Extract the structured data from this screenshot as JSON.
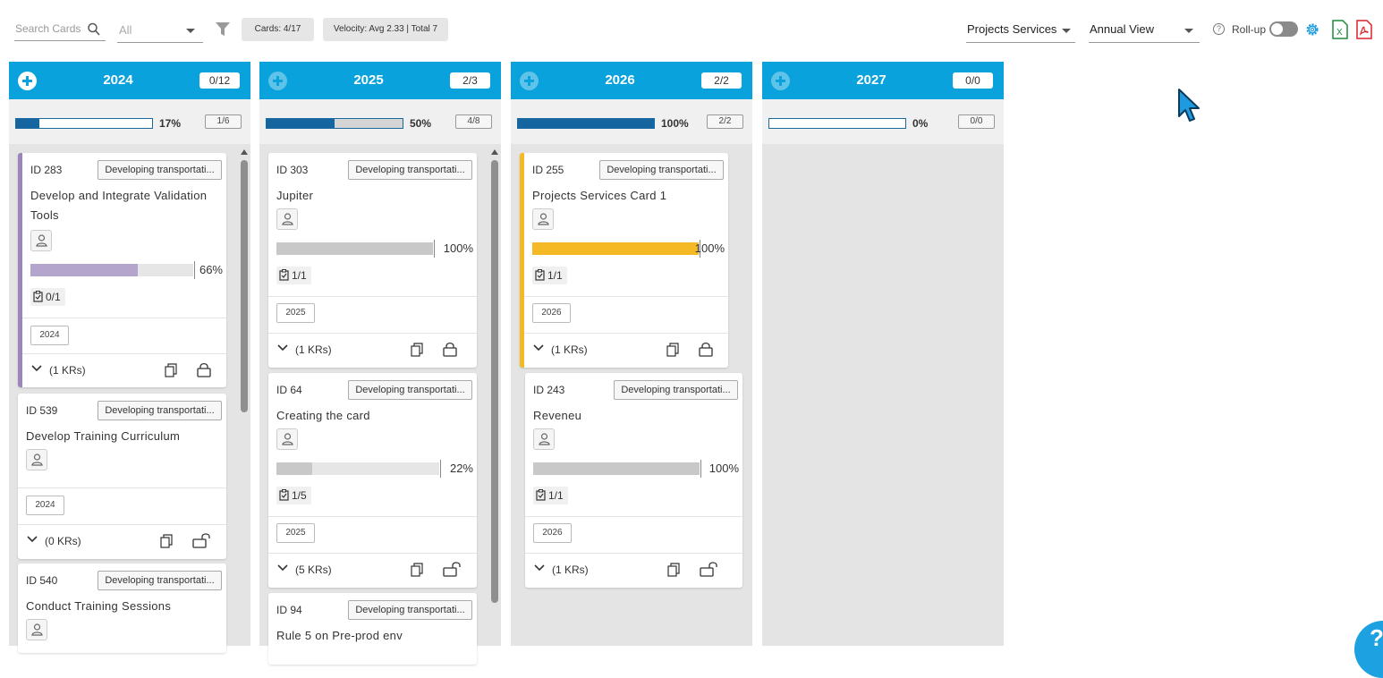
{
  "toolbar": {
    "search_placeholder": "Search Cards",
    "filter_select": "All",
    "cards_chip": "Cards: 4/17",
    "velocity_chip": "Velocity: Avg 2.33 | Total 7",
    "project_select": "Projects Services",
    "view_select": "Annual View",
    "help_glyph": "?",
    "rollup_label": "Roll-up",
    "rollup_on": false,
    "icons": [
      "search-icon",
      "chevron-down-icon",
      "filter-icon",
      "help-icon",
      "gear-icon",
      "excel-export-icon",
      "pdf-export-icon"
    ]
  },
  "columns": [
    {
      "year": "2024",
      "count": "0/12",
      "progress_pct": "17%",
      "progress_value": 0.17,
      "progress_frac": "1/6",
      "cards": [
        {
          "id": "ID 283",
          "tag": "Developing transportati...",
          "title": "Develop and Integrate Validation Tools",
          "progress": "66%",
          "progress_value": 0.66,
          "tasks": "0/1",
          "year": "2024",
          "krs": "(1 KRs)",
          "accent": "#9c85bb",
          "bar_color": "#b3a5cc",
          "lock": "locked"
        },
        {
          "id": "ID 539",
          "tag": "Developing transportati...",
          "title": "Develop Training Curriculum",
          "year": "2024",
          "krs": "(0 KRs)",
          "lock": "unlocked"
        },
        {
          "id": "ID 540",
          "tag": "Developing transportati...",
          "title": "Conduct Training Sessions"
        }
      ]
    },
    {
      "year": "2025",
      "count": "2/3",
      "progress_pct": "50%",
      "progress_value": 0.5,
      "progress_frac": "4/8",
      "cards": [
        {
          "id": "ID 303",
          "tag": "Developing transportati...",
          "title": "Jupiter",
          "progress": "100%",
          "progress_value": 1.0,
          "tasks": "1/1",
          "year": "2025",
          "krs": "(1 KRs)",
          "bar_color": "#c8c8c8",
          "lock": "locked"
        },
        {
          "id": "ID 64",
          "tag": "Developing transportati...",
          "title": "Creating the card",
          "progress": "22%",
          "progress_value": 0.22,
          "tasks": "1/5",
          "year": "2025",
          "krs": "(5 KRs)",
          "bar_color": "#c8c8c8",
          "lock": "unlocked"
        },
        {
          "id": "ID 94",
          "tag": "Developing transportati...",
          "title": "Rule 5 on Pre-prod env"
        }
      ]
    },
    {
      "year": "2026",
      "count": "2/2",
      "progress_pct": "100%",
      "progress_value": 1.0,
      "progress_frac": "2/2",
      "cards": [
        {
          "id": "ID 255",
          "tag": "Developing transportati...",
          "title": "Projects Services Card 1",
          "progress": "100%",
          "progress_value": 1.0,
          "tasks": "1/1",
          "year": "2026",
          "krs": "(1 KRs)",
          "accent": "#f5b925",
          "bar_color": "#f5b925",
          "lock": "locked"
        },
        {
          "id": "ID 243",
          "tag": "Developing transportati...",
          "title": "Reveneu",
          "progress": "100%",
          "progress_value": 1.0,
          "tasks": "1/1",
          "year": "2026",
          "krs": "(1 KRs)",
          "bar_color": "#c8c8c8",
          "lock": "unlocked"
        }
      ]
    },
    {
      "year": "2027",
      "count": "0/0",
      "progress_pct": "0%",
      "progress_value": 0.0,
      "progress_frac": "0/0",
      "cards": []
    }
  ],
  "colors": {
    "header_blue": "#09a2dc",
    "progress_blue": "#1565a0"
  }
}
